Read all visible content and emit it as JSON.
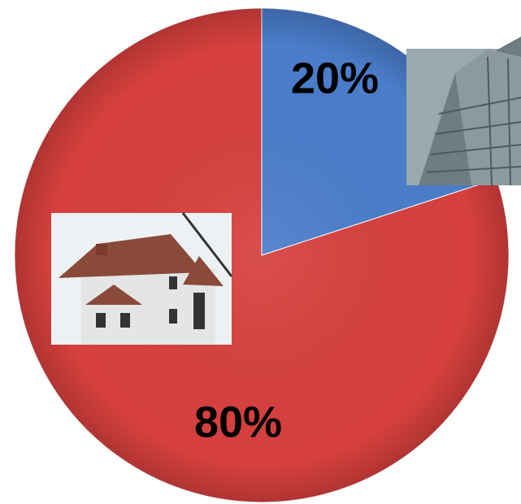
{
  "chart_data": {
    "type": "pie",
    "values": [
      20,
      80
    ],
    "value_labels": [
      "20%",
      "80%"
    ],
    "colors": [
      "#4a7dca",
      "#d6403e"
    ]
  }
}
